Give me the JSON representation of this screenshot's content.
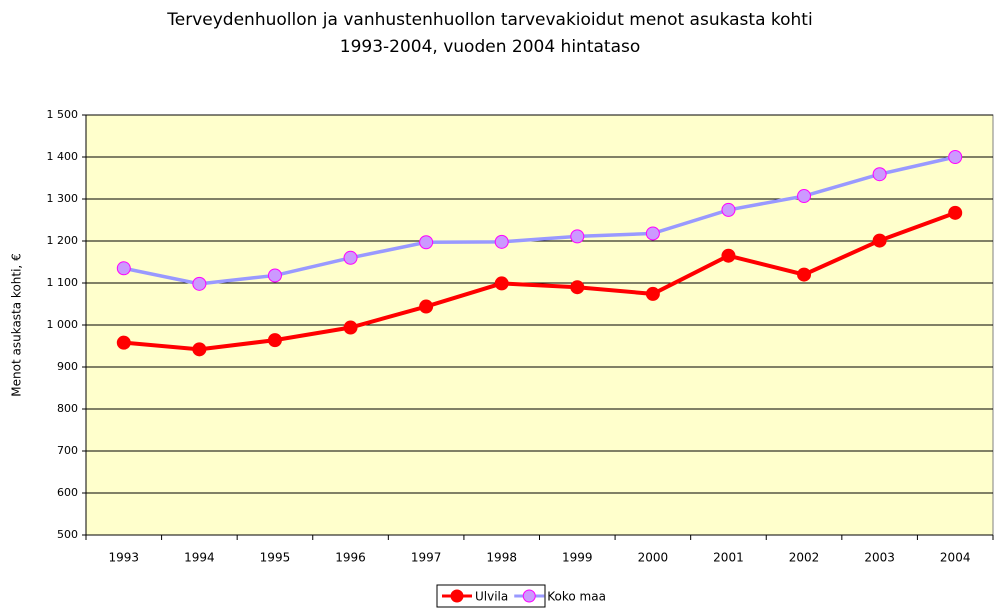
{
  "chart_data": {
    "type": "line",
    "title": [
      "Terveydenhuollon ja vanhustenhuollon tarvevakioidut menot asukasta kohti",
      "1993-2004, vuoden 2004 hintataso"
    ],
    "y_label": "Menot asukasta kohti, €",
    "categories": [
      "1993",
      "1994",
      "1995",
      "1996",
      "1997",
      "1998",
      "1999",
      "2000",
      "2001",
      "2002",
      "2003",
      "2004"
    ],
    "series": [
      {
        "name": "Ulvila",
        "color": "#ff0000",
        "marker_color": "#ff0000",
        "marker_edge": "#ff0000",
        "values": [
          958,
          942,
          964,
          994,
          1044,
          1099,
          1090,
          1074,
          1165,
          1120,
          1201,
          1267
        ]
      },
      {
        "name": "Koko maa",
        "color": "#9999ff",
        "marker_color": "#cc99ff",
        "marker_edge": "#ff00ff",
        "values": [
          1135,
          1098,
          1118,
          1160,
          1197,
          1198,
          1211,
          1218,
          1274,
          1307,
          1359,
          1400
        ]
      }
    ],
    "ylim": [
      500,
      1500
    ],
    "yticks": [
      500,
      600,
      700,
      800,
      900,
      {
        "value": 1000,
        "label": "1 000"
      },
      {
        "value": 1100,
        "label": "1 100"
      },
      {
        "value": 1200,
        "label": "1 200"
      },
      {
        "value": 1300,
        "label": "1 300"
      },
      {
        "value": 1400,
        "label": "1 400"
      },
      {
        "value": 1500,
        "label": "1 500"
      }
    ],
    "grid": true,
    "plot_background": "#ffffcc",
    "legend": "bottom"
  }
}
